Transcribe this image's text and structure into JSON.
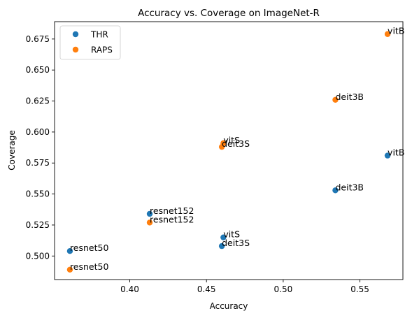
{
  "chart_data": {
    "type": "scatter",
    "title": "Accuracy vs. Coverage on ImageNet-R",
    "xlabel": "Accuracy",
    "ylabel": "Coverage",
    "xlim": [
      0.351,
      0.578
    ],
    "ylim": [
      0.481,
      0.689
    ],
    "xticks": [
      0.4,
      0.45,
      0.5,
      0.55
    ],
    "xtick_labels": [
      "0.40",
      "0.45",
      "0.50",
      "0.55"
    ],
    "yticks": [
      0.5,
      0.525,
      0.55,
      0.575,
      0.6,
      0.625,
      0.65,
      0.675
    ],
    "ytick_labels": [
      "0.500",
      "0.525",
      "0.550",
      "0.575",
      "0.600",
      "0.625",
      "0.650",
      "0.675"
    ],
    "grid": false,
    "legend_position": "top-left",
    "series": [
      {
        "name": "THR",
        "color": "#1f77b4",
        "points": [
          {
            "label": "resnet50",
            "x": 0.361,
            "y": 0.504
          },
          {
            "label": "resnet152",
            "x": 0.413,
            "y": 0.534
          },
          {
            "label": "vitS",
            "x": 0.461,
            "y": 0.515
          },
          {
            "label": "deit3S",
            "x": 0.46,
            "y": 0.508
          },
          {
            "label": "deit3B",
            "x": 0.534,
            "y": 0.553
          },
          {
            "label": "vitB",
            "x": 0.568,
            "y": 0.581
          }
        ]
      },
      {
        "name": "RAPS",
        "color": "#ff7f0e",
        "points": [
          {
            "label": "resnet50",
            "x": 0.361,
            "y": 0.489
          },
          {
            "label": "resnet152",
            "x": 0.413,
            "y": 0.527
          },
          {
            "label": "vitS",
            "x": 0.461,
            "y": 0.591
          },
          {
            "label": "deit3S",
            "x": 0.46,
            "y": 0.588
          },
          {
            "label": "deit3B",
            "x": 0.534,
            "y": 0.626
          },
          {
            "label": "vitB",
            "x": 0.568,
            "y": 0.679
          }
        ]
      }
    ]
  }
}
